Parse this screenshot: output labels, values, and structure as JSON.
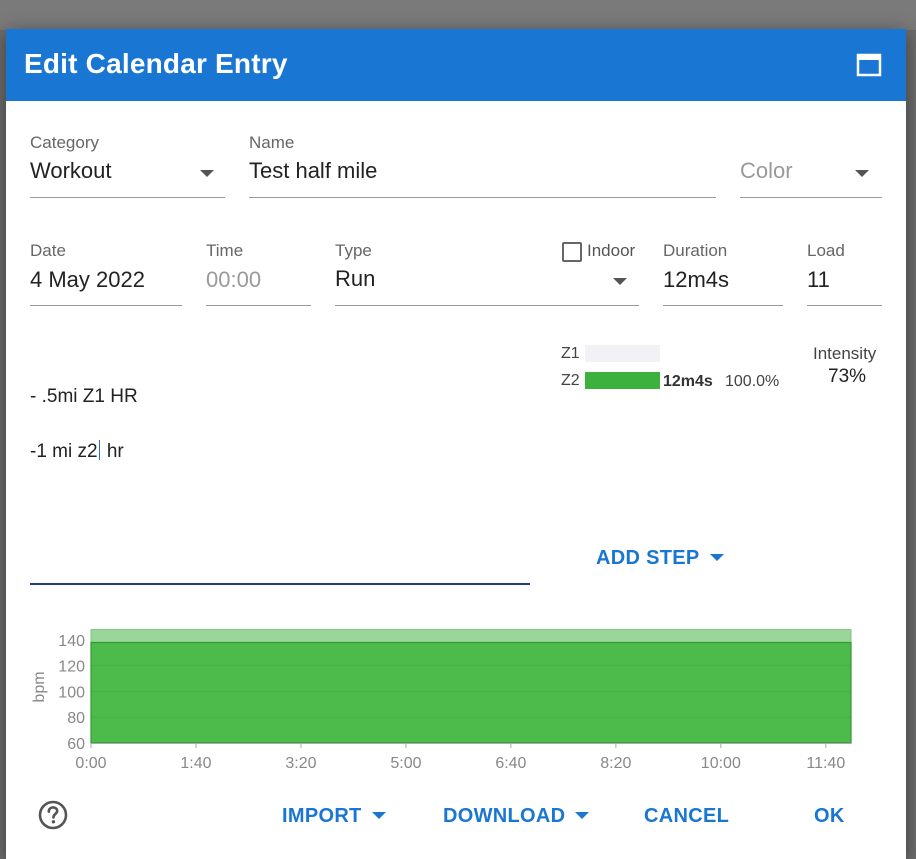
{
  "dialog": {
    "title": "Edit Calendar Entry",
    "icons": {
      "maximize": "window-maximize-icon",
      "help": "help-circle-icon"
    }
  },
  "fields": {
    "category": {
      "label": "Category",
      "value": "Workout"
    },
    "name": {
      "label": "Name",
      "value": "Test half mile"
    },
    "color": {
      "placeholder": "Color"
    },
    "date": {
      "label": "Date",
      "value": "4 May 2022"
    },
    "time": {
      "label": "Time",
      "placeholder": "00:00"
    },
    "type": {
      "label": "Type",
      "value": "Run"
    },
    "indoor": {
      "label": "Indoor",
      "checked": false
    },
    "duration": {
      "label": "Duration",
      "value": "12m4s"
    },
    "load": {
      "label": "Load",
      "value": "11"
    }
  },
  "zones": [
    {
      "name": "Z1",
      "fraction": 0.0,
      "duration": "",
      "percent": ""
    },
    {
      "name": "Z2",
      "fraction": 1.0,
      "duration": "12m4s",
      "percent": "100.0%"
    }
  ],
  "intensity": {
    "label": "Intensity",
    "value": "73%"
  },
  "description": {
    "line1": "- .5mi Z1 HR",
    "line2_before_cursor": "-1 mi z2",
    "line2_after_cursor": " hr"
  },
  "buttons": {
    "add_step": "ADD STEP",
    "import": "IMPORT",
    "download": "DOWNLOAD",
    "cancel": "CANCEL",
    "ok": "OK"
  },
  "colors": {
    "primary": "#1976d2",
    "zone_green": "#3db13d",
    "chart_fill": "#4cbb4c",
    "chart_band": "#9ad69a"
  },
  "chart_data": {
    "type": "area",
    "ylabel": "bpm",
    "xlabel": "",
    "ylim": [
      60,
      150
    ],
    "yticks": [
      60,
      80,
      100,
      120,
      140
    ],
    "xticks": [
      "0:00",
      "1:40",
      "3:20",
      "5:00",
      "6:40",
      "8:20",
      "10:00",
      "11:40"
    ],
    "xlim_seconds": [
      0,
      724
    ],
    "upper_band": {
      "from": 138,
      "to": 148
    },
    "series": [
      {
        "x_seconds": [
          0,
          724
        ],
        "values": [
          138,
          138
        ]
      }
    ]
  }
}
